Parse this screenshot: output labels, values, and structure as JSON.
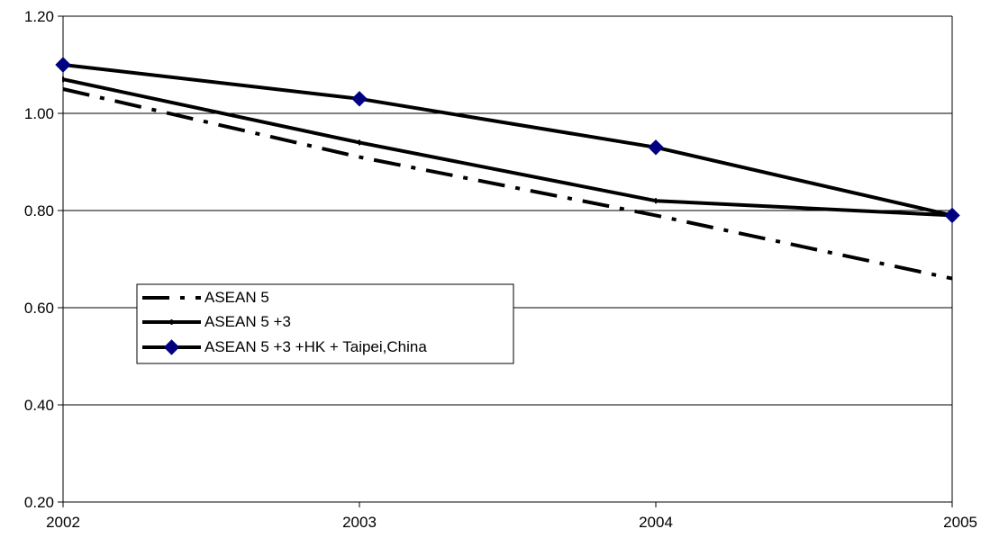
{
  "chart_data": {
    "type": "line",
    "title": "",
    "xlabel": "",
    "ylabel": "",
    "categories": [
      "2002",
      "2003",
      "2004",
      "2005"
    ],
    "ylim": [
      0.2,
      1.2
    ],
    "yticks": [
      "0.20",
      "0.40",
      "0.60",
      "0.80",
      "1.00",
      "1.20"
    ],
    "grid": "horizontal",
    "legend_position": "left-middle",
    "series": [
      {
        "name": "ASEAN 5",
        "values": [
          1.05,
          0.91,
          0.79,
          0.66
        ],
        "style": "dash-dot",
        "color": "#000000",
        "marker": "none"
      },
      {
        "name": "ASEAN 5 +3",
        "values": [
          1.07,
          0.94,
          0.82,
          0.79
        ],
        "style": "solid",
        "color": "#000000",
        "marker": "tick"
      },
      {
        "name": "ASEAN 5 +3 +HK + Taipei,China",
        "values": [
          1.1,
          1.03,
          0.93,
          0.79
        ],
        "style": "solid",
        "color": "#000000",
        "marker": "diamond",
        "marker_color": "#000080"
      }
    ]
  }
}
